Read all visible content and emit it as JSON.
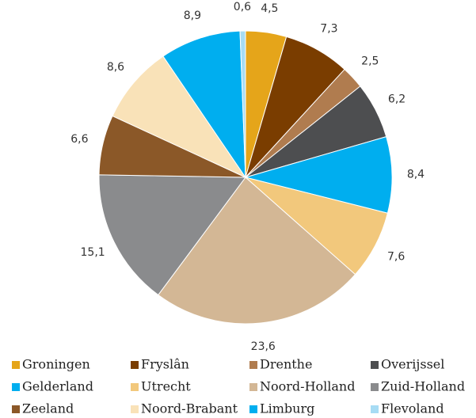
{
  "chart_data": {
    "type": "pie",
    "categories": [
      "Groningen",
      "Fryslân",
      "Drenthe",
      "Overijssel",
      "Gelderland",
      "Utrecht",
      "Noord-Holland",
      "Zuid-Holland",
      "Zeeland",
      "Noord-Brabant",
      "Limburg",
      "Flevoland"
    ],
    "values": [
      4.5,
      7.3,
      2.5,
      6.2,
      8.4,
      7.6,
      23.6,
      15.1,
      6.6,
      8.6,
      8.9,
      0.6
    ],
    "value_labels": [
      "4,5",
      "7,3",
      "2,5",
      "6,2",
      "8,4",
      "7,6",
      "23,6",
      "15,1",
      "6,6",
      "8,6",
      "8,9",
      "0,6"
    ],
    "colors": [
      "#e5a51a",
      "#7a3d00",
      "#b07c4f",
      "#4d4e50",
      "#00aeef",
      "#f2c87c",
      "#d3b795",
      "#8a8b8d",
      "#8b5828",
      "#f9e2b8",
      "#00aeef",
      "#a7dcf4"
    ],
    "legend": "bottom"
  }
}
